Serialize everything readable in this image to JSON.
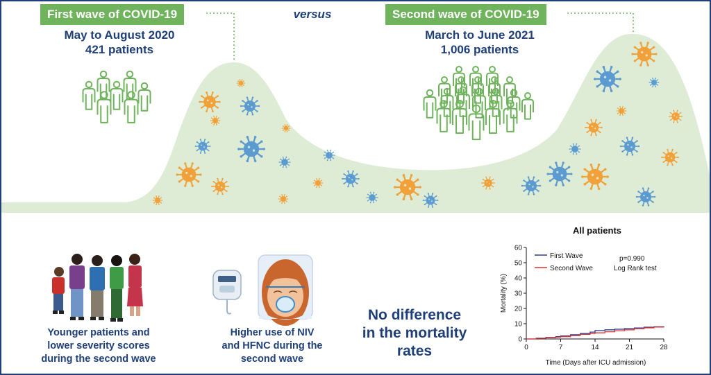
{
  "header": {
    "first_wave_badge": "First wave of COVID-19",
    "versus": "versus",
    "second_wave_badge": "Second wave of COVID-19"
  },
  "first_wave": {
    "period": "May to August 2020",
    "patients": "421 patients"
  },
  "second_wave": {
    "period": "March to June 2021",
    "patients": "1,006 patients"
  },
  "findings": {
    "younger": [
      "Younger patients and",
      "lower severity scores",
      "during the second wave"
    ],
    "niv": [
      "Higher use of NIV",
      "and HFNC during the",
      "second wave"
    ],
    "mortality": [
      "No difference",
      "in the mortality",
      "rates"
    ]
  },
  "colors": {
    "navy": "#1f3f79",
    "green_badge": "#6fb45c",
    "hill": "#deecd6",
    "virus_orange": "#f0a13a",
    "virus_blue": "#5b9bd0",
    "first_wave_line": "#2b3a8f",
    "second_wave_line": "#e0302e"
  },
  "chart_data": {
    "type": "line",
    "title": "All patients",
    "xlabel": "Time (Days after ICU admission)",
    "ylabel": "Mortality (%)",
    "xlim": [
      0,
      28
    ],
    "ylim": [
      0,
      60
    ],
    "xticks": [
      0,
      7,
      14,
      21,
      28
    ],
    "yticks": [
      0,
      10,
      20,
      30,
      40,
      50,
      60
    ],
    "legend_position": "top-left",
    "annotation": [
      "p=0.990",
      "Log Rank test"
    ],
    "series": [
      {
        "name": "First Wave",
        "color": "#2b3a8f",
        "x": [
          0,
          2,
          4,
          6,
          7,
          9,
          11,
          13,
          14,
          16,
          18,
          20,
          22,
          24,
          26,
          28
        ],
        "y": [
          0,
          0.5,
          1,
          1.5,
          2,
          2.8,
          3.6,
          4.5,
          5.5,
          6,
          6.4,
          6.8,
          7.2,
          7.7,
          8,
          8.3
        ]
      },
      {
        "name": "Second Wave",
        "color": "#e0302e",
        "x": [
          0,
          2,
          4,
          6,
          7,
          9,
          11,
          13,
          14,
          16,
          18,
          20,
          22,
          24,
          26,
          28
        ],
        "y": [
          0,
          0.4,
          0.8,
          1.2,
          1.5,
          2.2,
          3,
          3.6,
          4,
          4.7,
          5.4,
          6,
          6.7,
          7.3,
          7.8,
          8.1
        ]
      }
    ]
  }
}
